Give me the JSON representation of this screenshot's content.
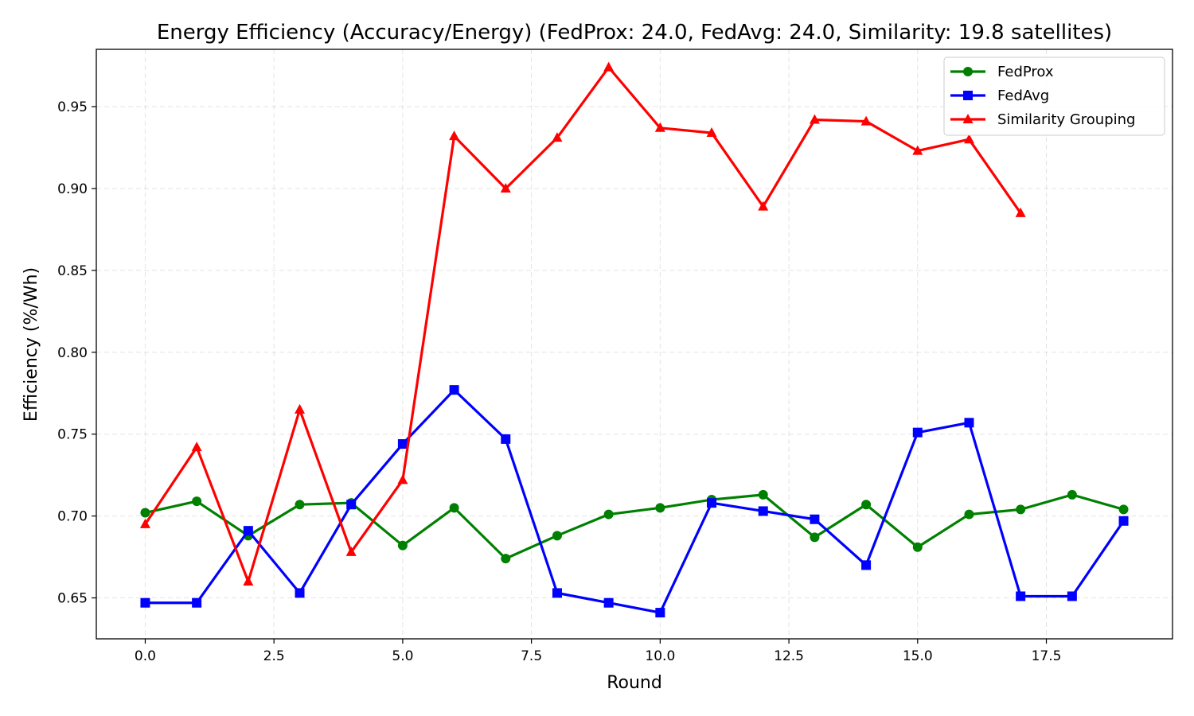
{
  "chart_data": {
    "type": "line",
    "title": "Energy Efficiency (Accuracy/Energy) (FedProx: 24.0, FedAvg: 24.0, Similarity: 19.8 satellites)",
    "xlabel": "Round",
    "ylabel": "Efficiency (%/Wh)",
    "xlim": [
      -0.95,
      19.95
    ],
    "ylim": [
      0.625,
      0.985
    ],
    "xticks": [
      0.0,
      2.5,
      5.0,
      7.5,
      10.0,
      12.5,
      15.0,
      17.5
    ],
    "xtick_labels": [
      "0.0",
      "2.5",
      "5.0",
      "7.5",
      "10.0",
      "12.5",
      "15.0",
      "17.5"
    ],
    "yticks": [
      0.65,
      0.7,
      0.75,
      0.8,
      0.85,
      0.9,
      0.95
    ],
    "ytick_labels": [
      "0.65",
      "0.70",
      "0.75",
      "0.80",
      "0.85",
      "0.90",
      "0.95"
    ],
    "grid": true,
    "legend_position": "top-right",
    "series": [
      {
        "name": "FedProx",
        "color": "#008000",
        "marker": "circle",
        "x": [
          0,
          1,
          2,
          3,
          4,
          5,
          6,
          7,
          8,
          9,
          10,
          11,
          12,
          13,
          14,
          15,
          16,
          17,
          18,
          19
        ],
        "values": [
          0.702,
          0.709,
          0.688,
          0.707,
          0.708,
          0.682,
          0.705,
          0.674,
          0.688,
          0.701,
          0.705,
          0.71,
          0.713,
          0.687,
          0.707,
          0.681,
          0.701,
          0.704,
          0.713,
          0.704
        ]
      },
      {
        "name": "FedAvg",
        "color": "#0000ff",
        "marker": "square",
        "x": [
          0,
          1,
          2,
          3,
          4,
          5,
          6,
          7,
          8,
          9,
          10,
          11,
          12,
          13,
          14,
          15,
          16,
          17,
          18,
          19
        ],
        "values": [
          0.647,
          0.647,
          0.691,
          0.653,
          0.707,
          0.744,
          0.777,
          0.747,
          0.653,
          0.647,
          0.641,
          0.708,
          0.703,
          0.698,
          0.67,
          0.751,
          0.757,
          0.651,
          0.651,
          0.697
        ]
      },
      {
        "name": "Similarity Grouping",
        "color": "#ff0000",
        "marker": "triangle",
        "x": [
          0,
          1,
          2,
          3,
          4,
          5,
          6,
          7,
          8,
          9,
          10,
          11,
          12,
          13,
          14,
          15,
          16,
          17
        ],
        "values": [
          0.695,
          0.742,
          0.66,
          0.765,
          0.678,
          0.722,
          0.932,
          0.9,
          0.931,
          0.974,
          0.937,
          0.934,
          0.889,
          0.942,
          0.941,
          0.923,
          0.93,
          0.885
        ]
      }
    ]
  }
}
